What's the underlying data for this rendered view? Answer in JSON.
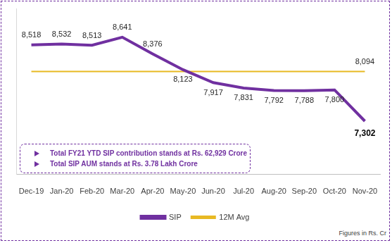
{
  "chart_data": {
    "type": "line",
    "categories": [
      "Dec-19",
      "Jan-20",
      "Feb-20",
      "Mar-20",
      "Apr-20",
      "May-20",
      "Jun-20",
      "Jul-20",
      "Aug-20",
      "Sep-20",
      "Oct-20",
      "Nov-20"
    ],
    "series": [
      {
        "name": "SIP",
        "color": "#7030a0",
        "marker": "none",
        "line_style": "solid",
        "values": [
          8518,
          8532,
          8513,
          8641,
          8376,
          8123,
          7917,
          7831,
          7792,
          7788,
          7800,
          7302
        ],
        "value_labels": [
          "8,518",
          "8,532",
          "8,513",
          "8,641",
          "8,376",
          "8,123",
          "7,917",
          "7,831",
          "7,792",
          "7,788",
          "7,800",
          "7,302"
        ]
      },
      {
        "name": "12M Avg",
        "color": "#e8b923",
        "marker": "none",
        "line_style": "solid",
        "values": [
          8094,
          8094,
          8094,
          8094,
          8094,
          8094,
          8094,
          8094,
          8094,
          8094,
          8094,
          8094
        ],
        "value_labels": [
          null,
          null,
          null,
          null,
          null,
          null,
          null,
          null,
          null,
          null,
          null,
          "8,094"
        ]
      }
    ],
    "ylim": [
      6450,
      9100
    ],
    "grid": false,
    "legend": "bottom",
    "data_labels": true,
    "tick_labels": "x",
    "annotations": [
      "Total FY21 YTD SIP contribution stands at Rs. 62,929 Crore",
      "Total SIP AUM stands at Rs. 3.78 Lakh Crore"
    ],
    "footnote": "Figures in Rs. Cr"
  }
}
